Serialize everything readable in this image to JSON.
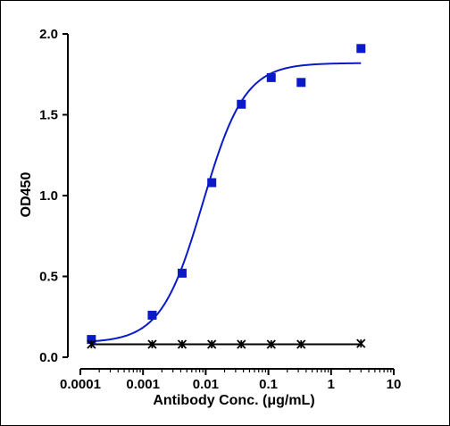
{
  "chart_data": {
    "type": "scatter",
    "xlabel": "Antibody Conc. (μg/mL)",
    "ylabel": "OD450",
    "x_scale": "log",
    "xlim": [
      0.0001,
      10
    ],
    "ylim": [
      0,
      2.0
    ],
    "x_ticks": [
      {
        "value": 0.0001,
        "label": "0.0001"
      },
      {
        "value": 0.001,
        "label": "0.001"
      },
      {
        "value": 0.01,
        "label": "0.01"
      },
      {
        "value": 0.1,
        "label": "0.1"
      },
      {
        "value": 1,
        "label": "1"
      },
      {
        "value": 10,
        "label": "10"
      }
    ],
    "y_ticks": [
      {
        "value": 0,
        "label": "0.0"
      },
      {
        "value": 0.5,
        "label": "0.5"
      },
      {
        "value": 1.0,
        "label": "1.0"
      },
      {
        "value": 1.5,
        "label": "1.5"
      },
      {
        "value": 2.0,
        "label": "2.0"
      }
    ],
    "grid": false,
    "legend": "none",
    "series": [
      {
        "marker": "square",
        "color": "#0b1ac9",
        "fit": "4PL sigmoid",
        "fit_params": {
          "bottom": 0.09,
          "top": 1.82,
          "ec50": 0.009,
          "hill": 1.3
        },
        "points": [
          {
            "x": 0.00015,
            "y": 0.11
          },
          {
            "x": 0.0014,
            "y": 0.26
          },
          {
            "x": 0.0042,
            "y": 0.52
          },
          {
            "x": 0.0125,
            "y": 1.08
          },
          {
            "x": 0.037,
            "y": 1.565
          },
          {
            "x": 0.111,
            "y": 1.73
          },
          {
            "x": 0.333,
            "y": 1.7
          },
          {
            "x": 3.0,
            "y": 1.91
          }
        ]
      },
      {
        "marker": "star",
        "color": "#000000",
        "fit": "line",
        "points": [
          {
            "x": 0.00015,
            "y": 0.08
          },
          {
            "x": 0.0014,
            "y": 0.08
          },
          {
            "x": 0.0042,
            "y": 0.08
          },
          {
            "x": 0.0125,
            "y": 0.08
          },
          {
            "x": 0.037,
            "y": 0.08
          },
          {
            "x": 0.111,
            "y": 0.08
          },
          {
            "x": 0.333,
            "y": 0.08
          },
          {
            "x": 3.0,
            "y": 0.085
          }
        ]
      }
    ]
  }
}
